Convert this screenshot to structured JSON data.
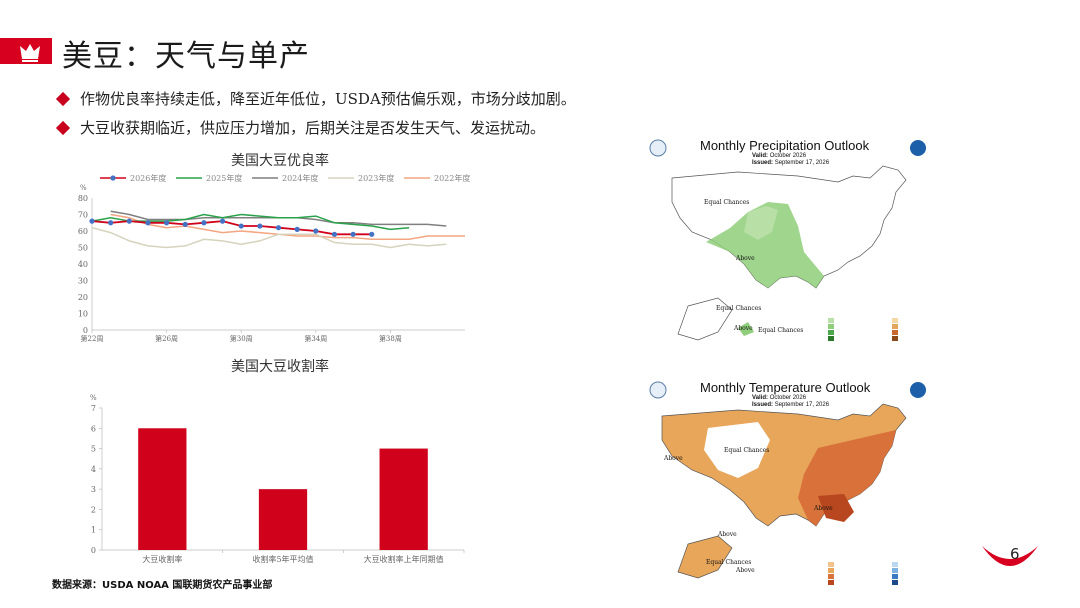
{
  "header": {
    "title": "美豆：天气与单产",
    "accent_color": "#d7001f",
    "icon": "crown-icon"
  },
  "bullets": [
    "作物优良率持续走低，降至近年低位，USDA预估偏乐观，市场分歧加剧。",
    "大豆收获期临近，供应压力增加，后期关注是否发生天气、发运扰动。"
  ],
  "chart_data": [
    {
      "type": "line",
      "title": "美国大豆优良率",
      "ylabel": "%",
      "ylim": [
        0,
        80
      ],
      "yticks": [
        0,
        10,
        20,
        30,
        40,
        50,
        60,
        70,
        80
      ],
      "x": [
        22,
        23,
        24,
        25,
        26,
        27,
        28,
        29,
        30,
        31,
        32,
        33,
        34,
        35,
        36,
        37,
        38,
        39,
        40,
        41,
        42
      ],
      "xticks": [
        "第22周",
        "第26周",
        "第30周",
        "第34周",
        "第38周"
      ],
      "xtick_weeks": [
        22,
        26,
        30,
        34,
        38
      ],
      "legend_position": "top",
      "series": [
        {
          "name": "2026年度",
          "color": "#d0021b",
          "marker": true,
          "marker_color": "#4472c4",
          "values": [
            66,
            65,
            66,
            65,
            65,
            64,
            65,
            66,
            63,
            63,
            62,
            61,
            60,
            58,
            58,
            58,
            null,
            null,
            null,
            null,
            null
          ]
        },
        {
          "name": "2025年度",
          "color": "#2aa24a",
          "values": [
            66,
            68,
            66,
            66,
            66,
            67,
            70,
            68,
            70,
            69,
            68,
            68,
            69,
            65,
            64,
            63,
            61,
            62,
            null,
            null,
            null
          ]
        },
        {
          "name": "2024年度",
          "color": "#7f7f7f",
          "values": [
            null,
            72,
            70,
            67,
            67,
            67,
            68,
            68,
            68,
            68,
            68,
            68,
            67,
            65,
            65,
            64,
            64,
            64,
            64,
            63,
            null
          ]
        },
        {
          "name": "2023年度",
          "color": "#d6d3bd",
          "values": [
            62,
            59,
            54,
            51,
            50,
            51,
            55,
            54,
            52,
            54,
            58,
            58,
            58,
            53,
            52,
            52,
            50,
            52,
            51,
            52,
            null
          ]
        },
        {
          "name": "2022年度",
          "color": "#f4a582",
          "values": [
            null,
            70,
            68,
            64,
            62,
            63,
            61,
            59,
            60,
            59,
            58,
            57,
            57,
            56,
            56,
            55,
            55,
            55,
            57,
            57,
            57
          ]
        }
      ]
    },
    {
      "type": "bar",
      "title": "美国大豆收割率",
      "ylabel": "%",
      "ylim": [
        0,
        7
      ],
      "yticks": [
        0,
        1,
        2,
        3,
        4,
        5,
        6,
        7
      ],
      "categories": [
        "大豆收割率",
        "收割率5年平均值",
        "大豆收割率上年同期值"
      ],
      "values": [
        6,
        3,
        5
      ],
      "color": "#d0021b"
    }
  ],
  "maps": {
    "precip": {
      "title": "Monthly Precipitation Outlook",
      "valid_label": "Valid:",
      "valid_value": "October 2026",
      "issued_label": "Issued:",
      "issued_value": "September 17, 2026",
      "region_labels": [
        "Equal Chances",
        "Above",
        "Equal Chances",
        "Above",
        "Equal Chances"
      ],
      "color_above": "#8fce7a"
    },
    "temp": {
      "title": "Monthly Temperature Outlook",
      "valid_label": "Valid:",
      "valid_value": "October 2026",
      "issued_label": "Issued:",
      "issued_value": "September 17, 2026",
      "region_labels": [
        "Above",
        "Equal Chances",
        "Above",
        "Above",
        "Equal Chances",
        "Above"
      ],
      "color_above": "#e8a65a"
    }
  },
  "footer": {
    "source": "数据来源：USDA NOAA 国联期货农产品事业部",
    "page_number": "6"
  }
}
